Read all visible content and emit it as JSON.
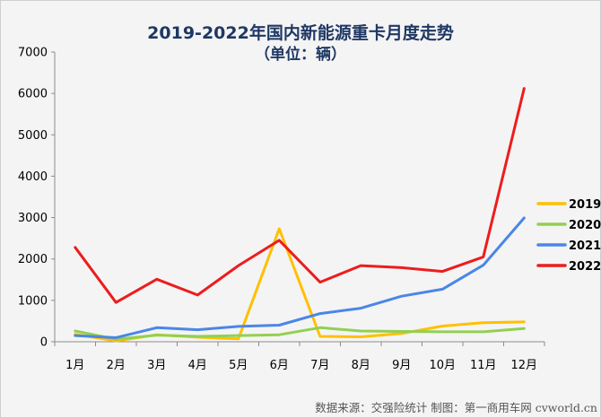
{
  "chart_data": {
    "type": "line",
    "title": "2019-2022年国内新能源重卡月度走势",
    "subtitle": "（单位：辆）",
    "categories": [
      "1月",
      "2月",
      "3月",
      "4月",
      "5月",
      "6月",
      "7月",
      "8月",
      "9月",
      "10月",
      "11月",
      "12月"
    ],
    "ylim": [
      0,
      7000
    ],
    "yticks": [
      0,
      1000,
      2000,
      3000,
      4000,
      5000,
      6000,
      7000
    ],
    "grid": false,
    "legend_position": "right",
    "series": [
      {
        "name": "2019",
        "color": "#ffc000",
        "values": [
          180,
          20,
          170,
          110,
          70,
          2730,
          130,
          120,
          200,
          380,
          460,
          480
        ]
      },
      {
        "name": "2020",
        "color": "#92d050",
        "values": [
          260,
          60,
          160,
          130,
          150,
          170,
          340,
          260,
          250,
          240,
          240,
          320
        ]
      },
      {
        "name": "2021",
        "color": "#4a86e8",
        "values": [
          150,
          100,
          340,
          290,
          370,
          400,
          680,
          810,
          1100,
          1270,
          1850,
          2990
        ]
      },
      {
        "name": "2022",
        "color": "#ee1c1c",
        "values": [
          2280,
          950,
          1510,
          1130,
          1840,
          2450,
          1440,
          1840,
          1790,
          1700,
          2050,
          6120
        ]
      }
    ]
  },
  "footer": "数据来源：交强险统计   制图：第一商用车网 cvworld.cn"
}
